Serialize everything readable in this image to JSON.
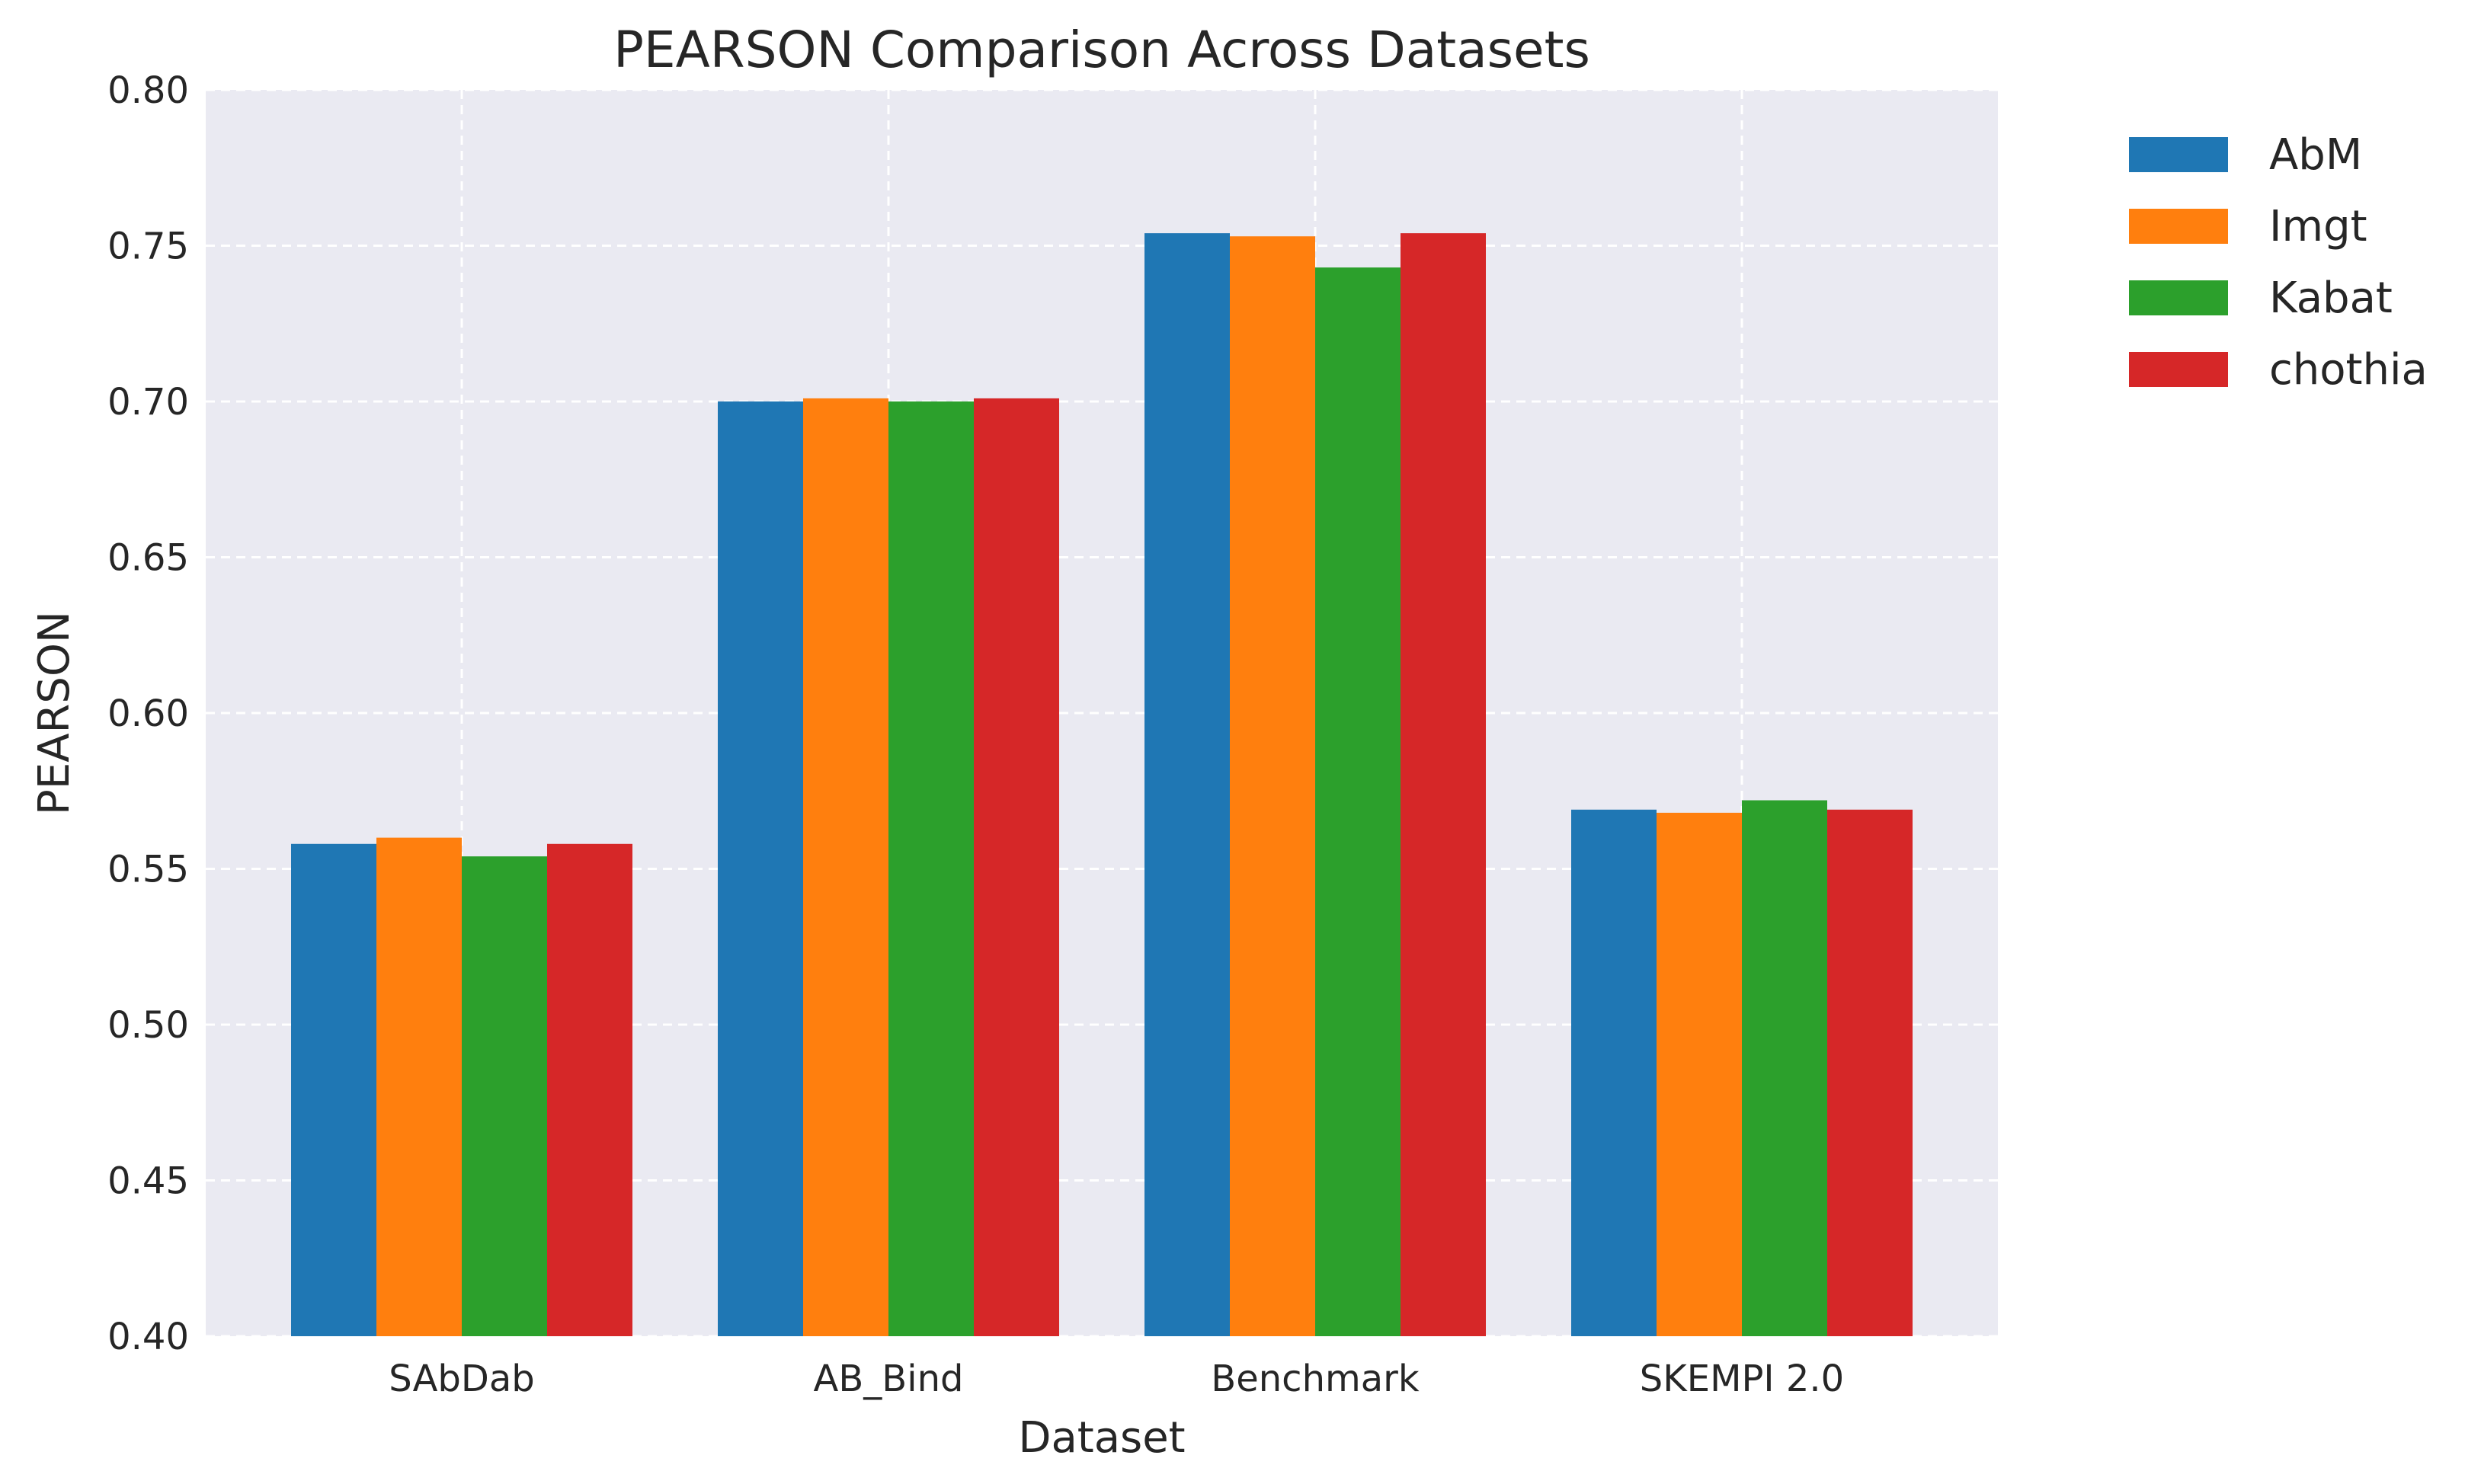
{
  "chart_data": {
    "type": "bar",
    "title": "PEARSON Comparison Across Datasets",
    "xlabel": "Dataset",
    "ylabel": "PEARSON",
    "ylim": [
      0.4,
      0.8
    ],
    "yticks": [
      "0.40",
      "0.45",
      "0.50",
      "0.55",
      "0.60",
      "0.65",
      "0.70",
      "0.75",
      "0.80"
    ],
    "grid": true,
    "legend_position": "outside-top-right",
    "categories": [
      "SAbDab",
      "AB_Bind",
      "Benchmark",
      "SKEMPI 2.0"
    ],
    "series": [
      {
        "name": "AbM",
        "color": "#1f77b4",
        "values": [
          0.558,
          0.7,
          0.754,
          0.569
        ]
      },
      {
        "name": "Imgt",
        "color": "#ff7f0e",
        "values": [
          0.56,
          0.701,
          0.753,
          0.568
        ]
      },
      {
        "name": "Kabat",
        "color": "#2ca02c",
        "values": [
          0.554,
          0.7,
          0.743,
          0.572
        ]
      },
      {
        "name": "chothia",
        "color": "#d62728",
        "values": [
          0.558,
          0.701,
          0.754,
          0.569
        ]
      }
    ]
  }
}
